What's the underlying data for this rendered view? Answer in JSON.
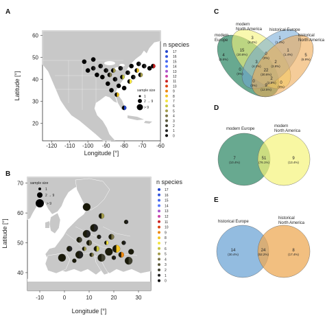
{
  "colors": {
    "ocean": "#ffffff",
    "land": "#c8c8c8",
    "land_border": "#ffffff",
    "map_bg": "#e6e6e6",
    "green": "#4e9a7c",
    "yellow": "#f5f37a",
    "blue": "#6fa6d6",
    "orange": "#eeaa55"
  },
  "chart_data": [
    {
      "panel": "A",
      "type": "scatter",
      "region": "North America",
      "xlabel": "Longitude [°]",
      "ylabel": "Latitude [°]",
      "xlim": [
        -125,
        -60
      ],
      "ylim": [
        12,
        62
      ],
      "xticks": [
        "-120",
        "-110",
        "-100",
        "-90",
        "-80",
        "-70",
        "-60"
      ],
      "yticks": [
        "20",
        "30",
        "40",
        "50",
        "60"
      ],
      "legend_title": "n species",
      "legend_levels": [
        "17",
        "16",
        "15",
        "14",
        "13",
        "12",
        "11",
        "10",
        "9",
        "8",
        "7",
        "6",
        "5",
        "4",
        "3",
        "2",
        "1",
        "0"
      ],
      "legend_colors": [
        "#2244cc",
        "#3355dd",
        "#4466ee",
        "#5577ff",
        "#aa55cc",
        "#cc44aa",
        "#cc2222",
        "#dd4411",
        "#ee8811",
        "#f2c422",
        "#f5e540",
        "#c6c43c",
        "#a29b4a",
        "#7a7446",
        "#5c5a3c",
        "#404030",
        "#222222",
        "#000000"
      ],
      "size_legend_title": "sample size",
      "size_legend": [
        "1",
        "2 → 9",
        "> 9"
      ],
      "points": [
        {
          "lon": -102,
          "lat": 48,
          "n": 0
        },
        {
          "lon": -100,
          "lat": 44,
          "n": 0
        },
        {
          "lon": -97,
          "lat": 49,
          "n": 0
        },
        {
          "lon": -97,
          "lat": 45,
          "n": 1
        },
        {
          "lon": -95,
          "lat": 42,
          "n": 0
        },
        {
          "lon": -93,
          "lat": 46,
          "n": 1
        },
        {
          "lon": -92,
          "lat": 41,
          "n": 0
        },
        {
          "lon": -90,
          "lat": 44,
          "n": 1
        },
        {
          "lon": -89,
          "lat": 38,
          "n": 0
        },
        {
          "lon": -88,
          "lat": 42,
          "n": 4
        },
        {
          "lon": -87,
          "lat": 35,
          "n": 0
        },
        {
          "lon": -86,
          "lat": 44,
          "n": 5
        },
        {
          "lon": -85,
          "lat": 40,
          "n": 1
        },
        {
          "lon": -84,
          "lat": 33,
          "n": 8
        },
        {
          "lon": -83,
          "lat": 37,
          "n": 0
        },
        {
          "lon": -82,
          "lat": 45,
          "n": 1
        },
        {
          "lon": -81,
          "lat": 41,
          "n": 6
        },
        {
          "lon": -80,
          "lat": 36,
          "n": 0
        },
        {
          "lon": -80,
          "lat": 27,
          "n": 17
        },
        {
          "lon": -78,
          "lat": 43,
          "n": 1
        },
        {
          "lon": -77,
          "lat": 39,
          "n": 7
        },
        {
          "lon": -76,
          "lat": 46,
          "n": 0
        },
        {
          "lon": -75,
          "lat": 41,
          "n": 1
        },
        {
          "lon": -73,
          "lat": 44,
          "n": 8
        },
        {
          "lon": -72,
          "lat": 47,
          "n": 1
        },
        {
          "lon": -71,
          "lat": 42,
          "n": 5
        },
        {
          "lon": -69,
          "lat": 46,
          "n": 1
        },
        {
          "lon": -66,
          "lat": 45,
          "n": 0
        },
        {
          "lon": -64,
          "lat": 46,
          "n": 11
        }
      ]
    },
    {
      "panel": "B",
      "type": "scatter",
      "region": "Europe",
      "xlabel": "Longitude [°]",
      "ylabel": "Latitude [°]",
      "xlim": [
        -15,
        35
      ],
      "ylim": [
        34,
        72
      ],
      "xticks": [
        "-10",
        "0",
        "10",
        "20",
        "30"
      ],
      "yticks": [
        "40",
        "50",
        "60",
        "70"
      ],
      "legend_title": "n species",
      "size_legend_title": "sample size",
      "size_legend": [
        "1",
        "2 → 9",
        "> 9"
      ],
      "points": [
        {
          "lon": -1,
          "lat": 45,
          "n": 0
        },
        {
          "lon": 2,
          "lat": 48,
          "n": 1
        },
        {
          "lon": 4,
          "lat": 44,
          "n": 0
        },
        {
          "lon": 6,
          "lat": 46,
          "n": 1
        },
        {
          "lon": 6,
          "lat": 51,
          "n": 2
        },
        {
          "lon": 8,
          "lat": 48,
          "n": 5
        },
        {
          "lon": 9,
          "lat": 53,
          "n": 1
        },
        {
          "lon": 10,
          "lat": 50,
          "n": 3
        },
        {
          "lon": 11,
          "lat": 46,
          "n": 4
        },
        {
          "lon": 12,
          "lat": 55,
          "n": 1
        },
        {
          "lon": 13,
          "lat": 48,
          "n": 6
        },
        {
          "lon": 14,
          "lat": 52,
          "n": 1
        },
        {
          "lon": 15,
          "lat": 45,
          "n": 2
        },
        {
          "lon": 15,
          "lat": 59,
          "n": 5
        },
        {
          "lon": 17,
          "lat": 50,
          "n": 7
        },
        {
          "lon": 18,
          "lat": 47,
          "n": 0
        },
        {
          "lon": 19,
          "lat": 52,
          "n": 4
        },
        {
          "lon": 20,
          "lat": 45,
          "n": 1
        },
        {
          "lon": 21,
          "lat": 48,
          "n": 8
        },
        {
          "lon": 23,
          "lat": 46,
          "n": 9
        },
        {
          "lon": 24,
          "lat": 50,
          "n": 1
        },
        {
          "lon": 26,
          "lat": 44,
          "n": 2
        },
        {
          "lon": 27,
          "lat": 47,
          "n": 0
        },
        {
          "lon": 25,
          "lat": 57,
          "n": 1
        },
        {
          "lon": 9,
          "lat": 62,
          "n": 0
        }
      ]
    },
    {
      "panel": "C",
      "type": "venn",
      "sets": [
        "modern\nEurope",
        "modern\nNorth America",
        "historical Europe",
        "historical\nNorth America"
      ],
      "regions": [
        {
          "value": "4",
          "pct": "(5.6%)"
        },
        {
          "value": "3",
          "pct": "(4.2%)"
        },
        {
          "value": "1",
          "pct": "(1.4%)"
        },
        {
          "value": "5",
          "pct": "(6.9%)"
        },
        {
          "value": "15",
          "pct": "(20.8%)"
        },
        {
          "value": "0",
          "pct": "(0%)"
        },
        {
          "value": "0",
          "pct": "(0%)"
        },
        {
          "value": "1",
          "pct": "(1.4%)"
        },
        {
          "value": "2",
          "pct": "(2.8%)"
        },
        {
          "value": "3",
          "pct": "(4.2%)"
        },
        {
          "value": "22",
          "pct": "(30.6%)"
        },
        {
          "value": "2",
          "pct": "(2.8%)"
        },
        {
          "value": "0",
          "pct": "(0%)"
        },
        {
          "value": "9",
          "pct": "(12.5%)"
        },
        {
          "value": "0",
          "pct": "(0%)"
        }
      ]
    },
    {
      "panel": "D",
      "type": "venn",
      "sets": [
        "modern Europe",
        "modern\nNorth America"
      ],
      "regions": [
        {
          "value": "7",
          "pct": "(10.4%)"
        },
        {
          "value": "51",
          "pct": "(76.1%)"
        },
        {
          "value": "9",
          "pct": "(13.4%)"
        }
      ]
    },
    {
      "panel": "E",
      "type": "venn",
      "sets": [
        "historical Europe",
        "historical\nNorth America"
      ],
      "regions": [
        {
          "value": "14",
          "pct": "(30.4%)"
        },
        {
          "value": "24",
          "pct": "(52.2%)"
        },
        {
          "value": "8",
          "pct": "(17.4%)"
        }
      ]
    }
  ]
}
